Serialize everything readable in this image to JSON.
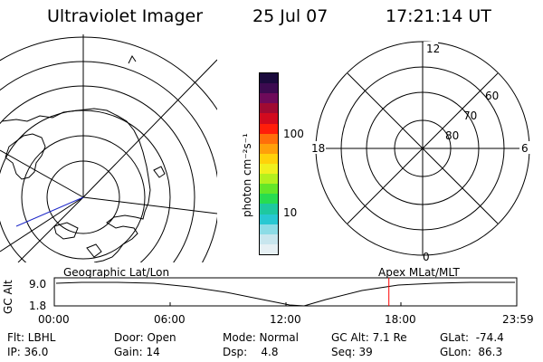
{
  "header": {
    "instrument": "Ultraviolet Imager",
    "date": "25 Jul 07",
    "time": "17:21:14 UT"
  },
  "colorbar": {
    "unit_label": "photon cm⁻²s⁻¹",
    "tick_100": "100",
    "tick_10": "10",
    "colors": [
      "#1a0a3c",
      "#3c0a50",
      "#6e0a5a",
      "#a00a32",
      "#d20a1e",
      "#ff1e0a",
      "#ff6e0a",
      "#ffa00a",
      "#ffd20a",
      "#f0f01e",
      "#b4f01e",
      "#64e628",
      "#28dc50",
      "#1ec8a0",
      "#28c8d2",
      "#8cdce6",
      "#c8e6ee",
      "#e6f0f4"
    ]
  },
  "polar_plot": {
    "labels": {
      "top": "12",
      "left": "18",
      "right": "6",
      "bottom": "0",
      "r60": "60",
      "r70": "70",
      "r80": "80"
    }
  },
  "timeline": {
    "left_label": "Geographic Lat/Lon",
    "right_label": "Apex MLat/MLT",
    "axis_title": "GC Alt",
    "y_top": "9.0",
    "y_bottom": "1.8",
    "ticks": [
      "00:00",
      "06:00",
      "12:00",
      "18:00",
      "23:59"
    ],
    "marker_time": "17:21",
    "marker_color": "#ff0000"
  },
  "status": {
    "flt": "Flt: LBHL",
    "ip": "IP: 36.0",
    "door": "Door: Open",
    "gain": "Gain: 14",
    "mode": "Mode: Normal",
    "dsp": "Dsp:    4.8",
    "gcalt": "GC Alt: 7.1 Re",
    "seq": "Seq: 39",
    "glat": "GLat:  -74.4",
    "glon": "GLon:  86.3"
  }
}
